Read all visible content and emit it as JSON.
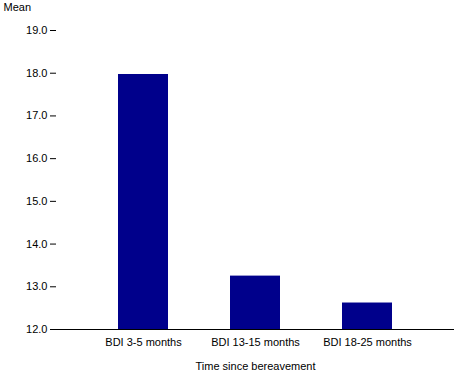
{
  "chart_data": {
    "type": "bar",
    "categories": [
      "BDI 3-5 months",
      "BDI 13-15 months",
      "BDI 18-25 months"
    ],
    "values": [
      17.97,
      13.25,
      12.62
    ],
    "color": "#00008B",
    "xlabel": "Time since bereavement",
    "ylabel": "Mean",
    "ylim": [
      12.0,
      19.0
    ],
    "yticks": [
      {
        "value": 12,
        "label": "12.0"
      },
      {
        "value": 13,
        "label": "13.0"
      },
      {
        "value": 14,
        "label": "14.0"
      },
      {
        "value": 15,
        "label": "15.0"
      },
      {
        "value": 16,
        "label": "16.0"
      },
      {
        "value": 17,
        "label": "17.0"
      },
      {
        "value": 18,
        "label": "18.0"
      },
      {
        "value": 19,
        "label": "19.0"
      }
    ],
    "grid": false
  }
}
